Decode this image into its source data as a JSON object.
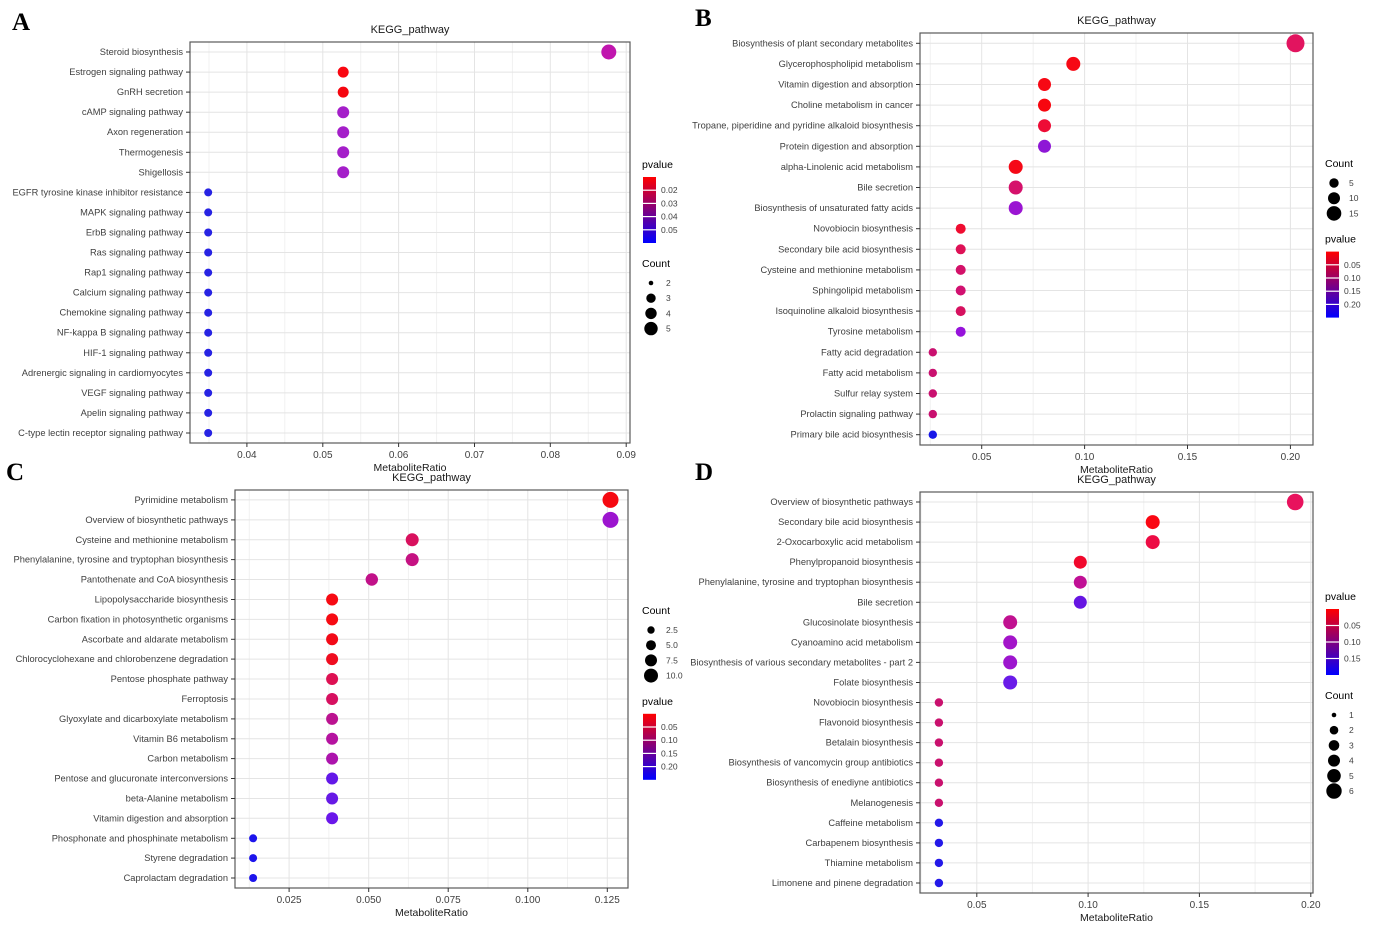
{
  "chart_data": [
    {
      "panel": "A",
      "type": "scatter",
      "title": "KEGG_pathway",
      "xlabel": "MetaboliteRatio",
      "x_ticks": [
        0.04,
        0.05,
        0.06,
        0.07,
        0.08,
        0.09
      ],
      "x_tick_labels": [
        "0.04",
        "0.05",
        "0.06",
        "0.07",
        "0.08",
        "0.09"
      ],
      "xlim": [
        0.0325,
        0.0905
      ],
      "grid": true,
      "legend_position": "right",
      "legend_order": [
        "pvalue",
        "count"
      ],
      "categories": [
        "Steroid biosynthesis",
        "Estrogen signaling pathway",
        "GnRH secretion",
        "cAMP signaling pathway",
        "Axon regeneration",
        "Thermogenesis",
        "Shigellosis",
        "EGFR tyrosine kinase inhibitor resistance",
        "MAPK signaling pathway",
        "ErbB signaling pathway",
        "Ras signaling pathway",
        "Rap1 signaling pathway",
        "Calcium signaling pathway",
        "Chemokine signaling pathway",
        "NF-kappa B signaling pathway",
        "HIF-1 signaling pathway",
        "Adrenergic signaling in cardiomyocytes",
        "VEGF signaling pathway",
        "Apelin signaling pathway",
        "C-type lectin receptor signaling pathway"
      ],
      "points": [
        {
          "x": 0.0877,
          "count": 5,
          "r": 7.5,
          "color": "#C016AE"
        },
        {
          "x": 0.0527,
          "count": 3,
          "r": 5.5,
          "color": "#F90711"
        },
        {
          "x": 0.0527,
          "count": 3,
          "r": 5.5,
          "color": "#F5060F"
        },
        {
          "x": 0.0527,
          "count": 3,
          "r": 6.0,
          "color": "#A41FC9"
        },
        {
          "x": 0.0527,
          "count": 3,
          "r": 6.0,
          "color": "#A41FC9"
        },
        {
          "x": 0.0527,
          "count": 3,
          "r": 6.0,
          "color": "#A41FC9"
        },
        {
          "x": 0.0527,
          "count": 3,
          "r": 6.0,
          "color": "#A41FC9"
        },
        {
          "x": 0.0349,
          "count": 2,
          "r": 4.0,
          "color": "#2723E3"
        },
        {
          "x": 0.0349,
          "count": 2,
          "r": 4.0,
          "color": "#2723E3"
        },
        {
          "x": 0.0349,
          "count": 2,
          "r": 4.0,
          "color": "#2723E3"
        },
        {
          "x": 0.0349,
          "count": 2,
          "r": 4.0,
          "color": "#2723E3"
        },
        {
          "x": 0.0349,
          "count": 2,
          "r": 4.0,
          "color": "#2723E3"
        },
        {
          "x": 0.0349,
          "count": 2,
          "r": 4.0,
          "color": "#2723E3"
        },
        {
          "x": 0.0349,
          "count": 2,
          "r": 4.0,
          "color": "#2723E3"
        },
        {
          "x": 0.0349,
          "count": 2,
          "r": 4.0,
          "color": "#2723E3"
        },
        {
          "x": 0.0349,
          "count": 2,
          "r": 4.0,
          "color": "#2723E3"
        },
        {
          "x": 0.0349,
          "count": 2,
          "r": 4.0,
          "color": "#2723E3"
        },
        {
          "x": 0.0349,
          "count": 2,
          "r": 4.0,
          "color": "#2723E3"
        },
        {
          "x": 0.0349,
          "count": 2,
          "r": 4.0,
          "color": "#2723E3"
        },
        {
          "x": 0.0349,
          "count": 2,
          "r": 4.0,
          "color": "#2723E3"
        }
      ],
      "legend_pvalue": {
        "title": "pvalue",
        "ticks": [
          "0.02",
          "0.03",
          "0.04",
          "0.05"
        ],
        "top_color": "#FF0000",
        "bottom_color": "#0000FF"
      },
      "legend_count": {
        "title": "Count",
        "items": [
          {
            "label": "2",
            "r": 2.3
          },
          {
            "label": "3",
            "r": 4.7
          },
          {
            "label": "4",
            "r": 5.7
          },
          {
            "label": "5",
            "r": 6.7
          }
        ]
      }
    },
    {
      "panel": "B",
      "type": "scatter",
      "title": "KEGG_pathway",
      "xlabel": "MetaboliteRatio",
      "x_ticks": [
        0.05,
        0.1,
        0.15,
        0.2
      ],
      "x_tick_labels": [
        "0.05",
        "0.10",
        "0.15",
        "0.20"
      ],
      "xlim": [
        0.02,
        0.211
      ],
      "grid": true,
      "legend_position": "right",
      "legend_order": [
        "count",
        "pvalue"
      ],
      "categories": [
        "Biosynthesis of plant secondary metabolites",
        "Glycerophospholipid metabolism",
        "Vitamin digestion and absorption",
        "Choline metabolism in cancer",
        "Tropane, piperidine and pyridine alkaloid biosynthesis",
        "Protein digestion and absorption",
        "alpha-Linolenic acid metabolism",
        "Bile secretion",
        "Biosynthesis of unsaturated fatty acids",
        "Novobiocin biosynthesis",
        "Secondary bile acid biosynthesis",
        "Cysteine and methionine metabolism",
        "Sphingolipid metabolism",
        "Isoquinoline alkaloid biosynthesis",
        "Tyrosine metabolism",
        "Fatty acid degradation",
        "Fatty acid metabolism",
        "Sulfur relay system",
        "Prolactin signaling pathway",
        "Primary bile acid biosynthesis"
      ],
      "points": [
        {
          "x": 0.2025,
          "count": 15,
          "r": 9.0,
          "color": "#E2145F"
        },
        {
          "x": 0.0945,
          "count": 11,
          "r": 7.0,
          "color": "#F70814"
        },
        {
          "x": 0.0805,
          "count": 10,
          "r": 6.5,
          "color": "#F70814"
        },
        {
          "x": 0.0805,
          "count": 10,
          "r": 6.5,
          "color": "#F7060F"
        },
        {
          "x": 0.0805,
          "count": 10,
          "r": 6.5,
          "color": "#EE0C36"
        },
        {
          "x": 0.0805,
          "count": 10,
          "r": 6.5,
          "color": "#8E17D6"
        },
        {
          "x": 0.0665,
          "count": 11,
          "r": 7.0,
          "color": "#F50917"
        },
        {
          "x": 0.0665,
          "count": 11,
          "r": 7.0,
          "color": "#D5116B"
        },
        {
          "x": 0.0665,
          "count": 11,
          "r": 7.0,
          "color": "#9A15D2"
        },
        {
          "x": 0.0398,
          "count": 5,
          "r": 5.0,
          "color": "#EF0C30"
        },
        {
          "x": 0.0398,
          "count": 5,
          "r": 5.0,
          "color": "#DE1156"
        },
        {
          "x": 0.0398,
          "count": 5,
          "r": 5.0,
          "color": "#D31169"
        },
        {
          "x": 0.0398,
          "count": 5,
          "r": 5.0,
          "color": "#D11170"
        },
        {
          "x": 0.0398,
          "count": 5,
          "r": 5.0,
          "color": "#D6115F"
        },
        {
          "x": 0.0398,
          "count": 5,
          "r": 5.0,
          "color": "#9613DB"
        },
        {
          "x": 0.0262,
          "count": 4,
          "r": 4.2,
          "color": "#C9106F"
        },
        {
          "x": 0.0262,
          "count": 4,
          "r": 4.2,
          "color": "#C9106F"
        },
        {
          "x": 0.0262,
          "count": 4,
          "r": 4.2,
          "color": "#C9106F"
        },
        {
          "x": 0.0262,
          "count": 4,
          "r": 4.2,
          "color": "#C9106F"
        },
        {
          "x": 0.0262,
          "count": 4,
          "r": 4.2,
          "color": "#1717E8"
        }
      ],
      "legend_pvalue": {
        "title": "pvalue",
        "ticks": [
          "0.05",
          "0.10",
          "0.15",
          "0.20"
        ],
        "top_color": "#FF0000",
        "bottom_color": "#0000FF"
      },
      "legend_count": {
        "title": "Count",
        "items": [
          {
            "label": "5",
            "r": 4.7
          },
          {
            "label": "10",
            "r": 6.0
          },
          {
            "label": "15",
            "r": 7.3
          }
        ]
      }
    },
    {
      "panel": "C",
      "type": "scatter",
      "title": "KEGG_pathway",
      "xlabel": "MetaboliteRatio",
      "x_ticks": [
        0.025,
        0.05,
        0.075,
        0.1,
        0.125
      ],
      "x_tick_labels": [
        "0.025",
        "0.050",
        "0.075",
        "0.100",
        "0.125"
      ],
      "xlim": [
        0.008,
        0.1315
      ],
      "grid": true,
      "legend_position": "right",
      "legend_order": [
        "count",
        "pvalue"
      ],
      "categories": [
        "Pyrimidine metabolism",
        "Overview of biosynthetic pathways",
        "Cysteine and methionine metabolism",
        "Phenylalanine, tyrosine and tryptophan biosynthesis",
        "Pantothenate and CoA biosynthesis",
        "Lipopolysaccharide biosynthesis",
        "Carbon fixation in photosynthetic organisms",
        "Ascorbate and aldarate metabolism",
        "Chlorocyclohexane and chlorobenzene degradation",
        "Pentose phosphate pathway",
        "Ferroptosis",
        "Glyoxylate and dicarboxylate metabolism",
        "Vitamin B6 metabolism",
        "Carbon metabolism",
        "Pentose and glucuronate interconversions",
        "beta-Alanine metabolism",
        "Vitamin digestion and absorption",
        "Phosphonate and phosphinate metabolism",
        "Styrene degradation",
        "Caprolactam degradation"
      ],
      "points": [
        {
          "x": 0.126,
          "count": 10,
          "r": 8.0,
          "color": "#F50911"
        },
        {
          "x": 0.126,
          "count": 10,
          "r": 8.0,
          "color": "#9C15CF"
        },
        {
          "x": 0.0637,
          "count": 7.5,
          "r": 6.5,
          "color": "#D8115E"
        },
        {
          "x": 0.0637,
          "count": 7.5,
          "r": 6.5,
          "color": "#C51282"
        },
        {
          "x": 0.051,
          "count": 7,
          "r": 6.2,
          "color": "#C11189"
        },
        {
          "x": 0.0385,
          "count": 6,
          "r": 6.0,
          "color": "#F60B13"
        },
        {
          "x": 0.0385,
          "count": 6,
          "r": 6.0,
          "color": "#F60B13"
        },
        {
          "x": 0.0385,
          "count": 6,
          "r": 6.0,
          "color": "#F20A18"
        },
        {
          "x": 0.0385,
          "count": 6,
          "r": 6.0,
          "color": "#EF0D20"
        },
        {
          "x": 0.0385,
          "count": 6,
          "r": 6.0,
          "color": "#DD1153"
        },
        {
          "x": 0.0385,
          "count": 6,
          "r": 6.0,
          "color": "#D61060"
        },
        {
          "x": 0.0385,
          "count": 6,
          "r": 6.0,
          "color": "#BB1390"
        },
        {
          "x": 0.0385,
          "count": 6,
          "r": 6.0,
          "color": "#B513A0"
        },
        {
          "x": 0.0385,
          "count": 6,
          "r": 6.0,
          "color": "#AC14AC"
        },
        {
          "x": 0.0385,
          "count": 6,
          "r": 6.0,
          "color": "#6318E8"
        },
        {
          "x": 0.0385,
          "count": 6,
          "r": 6.0,
          "color": "#661AE5"
        },
        {
          "x": 0.0385,
          "count": 6,
          "r": 6.0,
          "color": "#6A17EA"
        },
        {
          "x": 0.0137,
          "count": 2.5,
          "r": 4.0,
          "color": "#1D15EC"
        },
        {
          "x": 0.0137,
          "count": 2.5,
          "r": 4.0,
          "color": "#1D15EC"
        },
        {
          "x": 0.0137,
          "count": 2.5,
          "r": 4.0,
          "color": "#1D15EC"
        }
      ],
      "legend_pvalue": {
        "title": "pvalue",
        "ticks": [
          "0.05",
          "0.10",
          "0.15",
          "0.20"
        ],
        "top_color": "#FF0000",
        "bottom_color": "#0000FF"
      },
      "legend_count": {
        "title": "Count",
        "items": [
          {
            "label": "2.5",
            "r": 3.7
          },
          {
            "label": "5.0",
            "r": 5.0
          },
          {
            "label": "7.5",
            "r": 6.0
          },
          {
            "label": "10.0",
            "r": 7.0
          }
        ]
      }
    },
    {
      "panel": "D",
      "type": "scatter",
      "title": "KEGG_pathway",
      "xlabel": "MetaboliteRatio",
      "x_ticks": [
        0.05,
        0.1,
        0.15,
        0.2
      ],
      "x_tick_labels": [
        "0.05",
        "0.10",
        "0.15",
        "0.20"
      ],
      "xlim": [
        0.0245,
        0.201
      ],
      "grid": true,
      "legend_position": "right",
      "legend_order": [
        "pvalue",
        "count"
      ],
      "categories": [
        "Overview of biosynthetic pathways",
        "Secondary bile acid biosynthesis",
        "2-Oxocarboxylic acid metabolism",
        "Phenylpropanoid biosynthesis",
        "Phenylalanine, tyrosine and tryptophan biosynthesis",
        "Bile secretion",
        "Glucosinolate biosynthesis",
        "Cyanoamino acid metabolism",
        "Biosynthesis of various secondary metabolites - part 2",
        "Folate biosynthesis",
        "Novobiocin biosynthesis",
        "Flavonoid biosynthesis",
        "Betalain biosynthesis",
        "Biosynthesis of vancomycin group antibiotics",
        "Biosynthesis of enediyne antibiotics",
        "Melanogenesis",
        "Caffeine metabolism",
        "Carbapenem biosynthesis",
        "Thiamine metabolism",
        "Limonene and pinene degradation"
      ],
      "points": [
        {
          "x": 0.193,
          "count": 6,
          "r": 8.3,
          "color": "#E8125D"
        },
        {
          "x": 0.129,
          "count": 5,
          "r": 7.0,
          "color": "#FA0713"
        },
        {
          "x": 0.129,
          "count": 5,
          "r": 7.0,
          "color": "#ED0C44"
        },
        {
          "x": 0.0965,
          "count": 4,
          "r": 6.5,
          "color": "#F1082C"
        },
        {
          "x": 0.0965,
          "count": 4,
          "r": 6.5,
          "color": "#C01095"
        },
        {
          "x": 0.0965,
          "count": 4,
          "r": 6.5,
          "color": "#6615E2"
        },
        {
          "x": 0.065,
          "count": 5,
          "r": 7.0,
          "color": "#C01190"
        },
        {
          "x": 0.065,
          "count": 5,
          "r": 7.0,
          "color": "#A315C9"
        },
        {
          "x": 0.065,
          "count": 5,
          "r": 7.0,
          "color": "#9D16CE"
        },
        {
          "x": 0.065,
          "count": 5,
          "r": 7.0,
          "color": "#6A1BE8"
        },
        {
          "x": 0.033,
          "count": 1,
          "r": 4.2,
          "color": "#C9116E"
        },
        {
          "x": 0.033,
          "count": 1,
          "r": 4.2,
          "color": "#C9116E"
        },
        {
          "x": 0.033,
          "count": 1,
          "r": 4.2,
          "color": "#C9116E"
        },
        {
          "x": 0.033,
          "count": 1,
          "r": 4.2,
          "color": "#C9116E"
        },
        {
          "x": 0.033,
          "count": 1,
          "r": 4.2,
          "color": "#C9116E"
        },
        {
          "x": 0.033,
          "count": 1,
          "r": 4.2,
          "color": "#C9116E"
        },
        {
          "x": 0.033,
          "count": 1,
          "r": 4.2,
          "color": "#2419E8"
        },
        {
          "x": 0.033,
          "count": 1,
          "r": 4.2,
          "color": "#2419E8"
        },
        {
          "x": 0.033,
          "count": 1,
          "r": 4.2,
          "color": "#2419E8"
        },
        {
          "x": 0.033,
          "count": 1,
          "r": 4.2,
          "color": "#2419E8"
        }
      ],
      "legend_pvalue": {
        "title": "pvalue",
        "ticks": [
          "0.05",
          "0.10",
          "0.15"
        ],
        "top_color": "#FF0000",
        "bottom_color": "#0000FF"
      },
      "legend_count": {
        "title": "Count",
        "items": [
          {
            "label": "1",
            "r": 2.3
          },
          {
            "label": "2",
            "r": 4.3
          },
          {
            "label": "3",
            "r": 5.3
          },
          {
            "label": "4",
            "r": 6.0
          },
          {
            "label": "5",
            "r": 6.8
          },
          {
            "label": "6",
            "r": 7.7
          }
        ]
      }
    }
  ],
  "colors": {
    "grid_major": "#E4E4E4",
    "grid_minor": "#F1F1F1",
    "panel_border": "#595959",
    "axis_text": "#404040",
    "title_text": "#1a1a1a",
    "legend_dot": "#000000"
  }
}
